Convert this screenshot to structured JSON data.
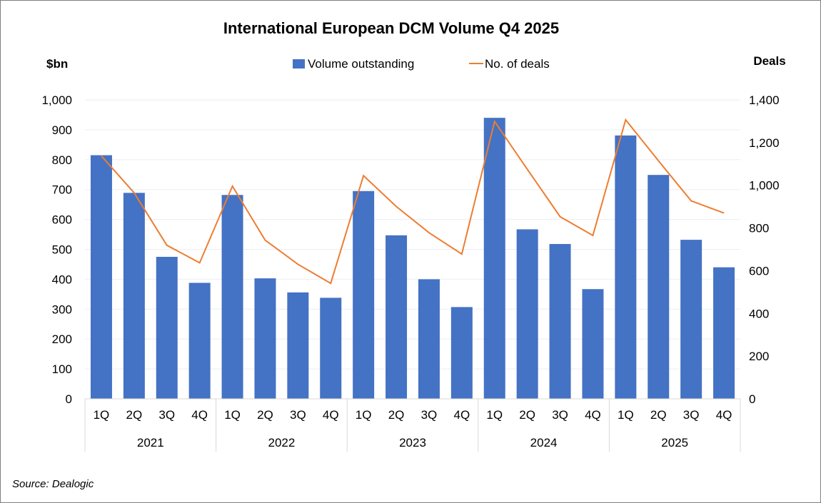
{
  "chart_data": {
    "type": "bar+line",
    "title": "International European DCM Volume Q4 2025",
    "left_axis": {
      "label": "$bn",
      "ylim": [
        0,
        1000
      ],
      "ticks": [
        "0",
        "100",
        "200",
        "300",
        "400",
        "500",
        "600",
        "700",
        "800",
        "900",
        "1,000"
      ]
    },
    "right_axis": {
      "label": "Deals",
      "ylim": [
        0,
        1400
      ],
      "ticks": [
        "0",
        "200",
        "400",
        "600",
        "800",
        "1,000",
        "1,200",
        "1,400"
      ]
    },
    "quarters": [
      "1Q",
      "2Q",
      "3Q",
      "4Q"
    ],
    "years": [
      "2021",
      "2022",
      "2023",
      "2024",
      "2025"
    ],
    "series": [
      {
        "name": "Volume outstanding",
        "type": "bar",
        "axis": "left",
        "color": "#4472c4",
        "values": [
          815,
          689,
          475,
          388,
          682,
          403,
          356,
          338,
          695,
          547,
          400,
          307,
          940,
          567,
          518,
          367,
          881,
          749,
          532,
          440
        ]
      },
      {
        "name": "No. of deals",
        "type": "line",
        "axis": "right",
        "color": "#ed7d31",
        "values": [
          1138,
          965,
          719,
          637,
          996,
          743,
          630,
          541,
          1045,
          901,
          778,
          678,
          1299,
          1075,
          853,
          765,
          1307,
          1115,
          927,
          870
        ]
      }
    ],
    "legend": "top-center",
    "grid": true
  },
  "source": "Source: Dealogic"
}
